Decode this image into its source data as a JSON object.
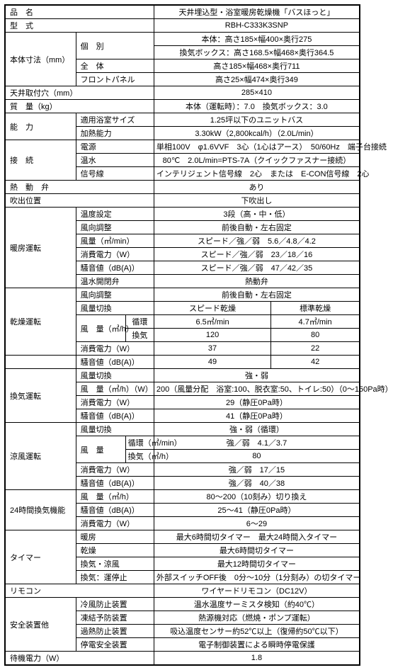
{
  "cols": [
    "70",
    "30",
    "70",
    "40",
    "40",
    "125",
    "125"
  ],
  "rows": [
    [
      {
        "cs": 4,
        "t": "品　名",
        "cl": "l outer-top outer-left"
      },
      {
        "cs": 3,
        "t": "天井埋込型・浴室暖房乾燥機「バスほっと」",
        "cl": "c outer-top outer-right"
      }
    ],
    [
      {
        "cs": 4,
        "t": "型　式",
        "cl": "l outer-left"
      },
      {
        "cs": 3,
        "t": "RBH-C333K3SNP",
        "cl": "c outer-right"
      }
    ],
    [
      {
        "cs": 2,
        "rs": 4,
        "t": "本体寸法（mm）",
        "cl": "l outer-left"
      },
      {
        "cs": 2,
        "rs": 2,
        "t": "個　別",
        "cl": "l"
      },
      {
        "cs": 3,
        "t": "本体：高さ185×幅400×奥行275",
        "cl": "c outer-right"
      }
    ],
    [
      {
        "cs": 3,
        "t": "換気ボックス：高さ168.5×幅468×奥行364.5",
        "cl": "c outer-right"
      }
    ],
    [
      {
        "cs": 2,
        "t": "全　体",
        "cl": "l"
      },
      {
        "cs": 3,
        "t": "高さ185×幅468×奥行711",
        "cl": "c outer-right"
      }
    ],
    [
      {
        "cs": 2,
        "t": "フロントパネル",
        "cl": "l"
      },
      {
        "cs": 3,
        "t": "高さ25×幅474×奥行349",
        "cl": "c outer-right"
      }
    ],
    [
      {
        "cs": 4,
        "t": "天井取付穴（mm）",
        "cl": "l outer-left"
      },
      {
        "cs": 3,
        "t": "285×410",
        "cl": "c outer-right"
      }
    ],
    [
      {
        "cs": 4,
        "t": "質　量（kg）",
        "cl": "l outer-left"
      },
      {
        "cs": 3,
        "t": "本体（運転時）：7.0　換気ボックス：3.0",
        "cl": "c outer-right"
      }
    ],
    [
      {
        "cs": 2,
        "rs": 2,
        "t": "能　力",
        "cl": "l outer-left"
      },
      {
        "cs": 2,
        "t": "適用浴室サイズ",
        "cl": "l"
      },
      {
        "cs": 3,
        "t": "1.25坪以下のユニットバス",
        "cl": "c outer-right"
      }
    ],
    [
      {
        "cs": 2,
        "t": "加熱能力",
        "cl": "l"
      },
      {
        "cs": 3,
        "t": "3.30kW（2,800kcal/h）（2.0L/min）",
        "cl": "c outer-right"
      }
    ],
    [
      {
        "cs": 2,
        "rs": 3,
        "t": "接　続",
        "cl": "l outer-left"
      },
      {
        "cs": 2,
        "t": "電源",
        "cl": "l"
      },
      {
        "cs": 3,
        "t": "単相100V　φ1.6VVF　3心（1心はアース）　50/60Hz　端子台接続",
        "cl": "c outer-right"
      }
    ],
    [
      {
        "cs": 2,
        "t": "温水",
        "cl": "l"
      },
      {
        "cs": 3,
        "t": "80℃　2.0L/min=PTS-7A（クイックファスナー接続）",
        "cl": "c outer-right"
      }
    ],
    [
      {
        "cs": 2,
        "t": "信号線",
        "cl": "l"
      },
      {
        "cs": 3,
        "t": "インテリジェント信号線　2心　または　E-CON信号線　2心",
        "cl": "c outer-right"
      }
    ],
    [
      {
        "cs": 4,
        "t": "熱　動　弁",
        "cl": "l outer-left"
      },
      {
        "cs": 3,
        "t": "あり",
        "cl": "c outer-right"
      }
    ],
    [
      {
        "cs": 4,
        "t": "吹出位置",
        "cl": "l outer-left"
      },
      {
        "cs": 3,
        "t": "下吹出し",
        "cl": "c outer-right"
      }
    ],
    [
      {
        "cs": 2,
        "rs": 6,
        "t": "暖房運転",
        "cl": "l outer-left"
      },
      {
        "cs": 2,
        "t": "温度設定",
        "cl": "l"
      },
      {
        "cs": 3,
        "t": "3段（高・中・低）",
        "cl": "c outer-right"
      }
    ],
    [
      {
        "cs": 2,
        "t": "風向調整",
        "cl": "l"
      },
      {
        "cs": 3,
        "t": "前後自動・左右固定",
        "cl": "c outer-right"
      }
    ],
    [
      {
        "cs": 2,
        "t": "風量（㎥/min）",
        "cl": "l"
      },
      {
        "cs": 3,
        "t": "スピード／強／弱　5.6／4.8／4.2",
        "cl": "c outer-right"
      }
    ],
    [
      {
        "cs": 2,
        "t": "消費電力（W）",
        "cl": "l"
      },
      {
        "cs": 3,
        "t": "スピード／強／弱　23／18／16",
        "cl": "c outer-right"
      }
    ],
    [
      {
        "cs": 2,
        "t": "騒音値（dB(A)）",
        "cl": "l"
      },
      {
        "cs": 3,
        "t": "スピード／強／弱　47／42／35",
        "cl": "c outer-right"
      }
    ],
    [
      {
        "cs": 2,
        "t": "温水開閉弁",
        "cl": "l"
      },
      {
        "cs": 3,
        "t": "熱動弁",
        "cl": "c outer-right"
      }
    ],
    [
      {
        "cs": 2,
        "rs": 5,
        "t": "乾燥運転",
        "cl": "l outer-left"
      },
      {
        "cs": 2,
        "t": "風向調整",
        "cl": "l"
      },
      {
        "cs": 3,
        "t": "前後自動・左右固定",
        "cl": "c outer-right"
      }
    ],
    [
      {
        "cs": 2,
        "t": "風量切換",
        "cl": "l"
      },
      {
        "cs": 2,
        "t": "スピード乾燥",
        "cl": "c"
      },
      {
        "t": "標準乾燥",
        "cl": "c outer-right"
      }
    ],
    [
      {
        "rs": 2,
        "t": "風　量（㎥/h）",
        "cl": "l"
      },
      {
        "t": "循環",
        "cl": "c"
      },
      {
        "cs": 2,
        "t": "6.5㎥/min",
        "cl": "c"
      },
      {
        "t": "4.7㎥/min",
        "cl": "c outer-right"
      }
    ],
    [
      {
        "t": "換気",
        "cl": "c"
      },
      {
        "cs": 2,
        "t": "120",
        "cl": "c"
      },
      {
        "t": "80",
        "cl": "c outer-right"
      }
    ],
    [
      {
        "cs": 2,
        "t": "消費電力（W）",
        "cl": "l"
      },
      {
        "cs": 2,
        "t": "37",
        "cl": "c"
      },
      {
        "t": "22",
        "cl": "c outer-right"
      }
    ],
    [
      {
        "cs": 2,
        "t": "",
        "cl": "outer-left"
      },
      {
        "cs": 2,
        "t": "騒音値（dB(A)）",
        "cl": "l"
      },
      {
        "cs": 2,
        "t": "49",
        "cl": "c"
      },
      {
        "t": "42",
        "cl": "c outer-right"
      }
    ],
    [
      {
        "cs": 2,
        "rs": 4,
        "t": "換気運転",
        "cl": "l outer-left"
      },
      {
        "cs": 2,
        "t": "風量切換",
        "cl": "l"
      },
      {
        "cs": 3,
        "t": "強・弱",
        "cl": "c outer-right"
      }
    ],
    [
      {
        "cs": 2,
        "t": "風　量（㎥/h）（W）",
        "cl": "l"
      },
      {
        "cs": 3,
        "t": "200（風量分配　浴室:100、脱衣室:50、トイレ:50）（0～150Pa時）",
        "cl": "c outer-right"
      }
    ],
    [
      {
        "cs": 2,
        "t": "消費電力（W）",
        "cl": "l"
      },
      {
        "cs": 3,
        "t": "29（静圧0Pa時）",
        "cl": "c outer-right"
      }
    ],
    [
      {
        "cs": 2,
        "t": "騒音値（dB(A)）",
        "cl": "l"
      },
      {
        "cs": 3,
        "t": "41（静圧0Pa時）",
        "cl": "c outer-right"
      }
    ],
    [
      {
        "cs": 2,
        "rs": 5,
        "t": "涼風運転",
        "cl": "l outer-left"
      },
      {
        "cs": 2,
        "t": "風量切換",
        "cl": "l"
      },
      {
        "cs": 3,
        "t": "強・弱（循環）",
        "cl": "c outer-right"
      }
    ],
    [
      {
        "rs": 2,
        "t": "風　量",
        "cl": "l"
      },
      {
        "t": "循環（㎥/min）",
        "cl": "c"
      },
      {
        "cs": 3,
        "t": "強／弱　4.1／3.7",
        "cl": "c outer-right"
      }
    ],
    [
      {
        "t": "換気（㎥/h）",
        "cl": "c"
      },
      {
        "cs": 3,
        "t": "80",
        "cl": "c outer-right"
      }
    ],
    [
      {
        "cs": 2,
        "t": "消費電力（W）",
        "cl": "l"
      },
      {
        "cs": 3,
        "t": "強／弱　17／15",
        "cl": "c outer-right"
      }
    ],
    [
      {
        "cs": 2,
        "t": "騒音値（dB(A)）",
        "cl": "l"
      },
      {
        "cs": 3,
        "t": "強／弱　40／38",
        "cl": "c outer-right"
      }
    ],
    [
      {
        "cs": 2,
        "rs": 3,
        "t": "24時間換気機能",
        "cl": "l outer-left"
      },
      {
        "cs": 2,
        "t": "風　量（㎥/h）",
        "cl": "l"
      },
      {
        "cs": 3,
        "t": "80～200（10刻み）切り換え",
        "cl": "c outer-right"
      }
    ],
    [
      {
        "cs": 2,
        "t": "騒音値（dB(A)）",
        "cl": "l"
      },
      {
        "cs": 3,
        "t": "25～41（静圧0Pa時）",
        "cl": "c outer-right"
      }
    ],
    [
      {
        "cs": 2,
        "t": "消費電力（W）",
        "cl": "l"
      },
      {
        "cs": 3,
        "t": "6～29",
        "cl": "c outer-right"
      }
    ],
    [
      {
        "cs": 2,
        "rs": 4,
        "t": "タイマー",
        "cl": "l outer-left"
      },
      {
        "cs": 2,
        "t": "暖房",
        "cl": "l"
      },
      {
        "cs": 3,
        "t": "最大6時間切タイマー　最大24時間入タイマー",
        "cl": "c outer-right"
      }
    ],
    [
      {
        "cs": 2,
        "t": "乾燥",
        "cl": "l"
      },
      {
        "cs": 3,
        "t": "最大6時間切タイマー",
        "cl": "c outer-right"
      }
    ],
    [
      {
        "cs": 2,
        "t": "換気・涼風",
        "cl": "l"
      },
      {
        "cs": 3,
        "t": "最大12時間切タイマー",
        "cl": "c outer-right"
      }
    ],
    [
      {
        "cs": 2,
        "t": "換気：運停止",
        "cl": "l"
      },
      {
        "cs": 3,
        "t": "外部スイッチOFF後　0分～10分（1分刻み）の切タイマー",
        "cl": "c outer-right"
      }
    ],
    [
      {
        "cs": 4,
        "t": "リモコン",
        "cl": "l outer-left"
      },
      {
        "cs": 3,
        "t": "ワイヤードリモコン（DC12V）",
        "cl": "c outer-right"
      }
    ],
    [
      {
        "cs": 2,
        "rs": 4,
        "t": "安全装置他",
        "cl": "l outer-left"
      },
      {
        "cs": 2,
        "t": "冷風防止装置",
        "cl": "l"
      },
      {
        "cs": 3,
        "t": "温水温度サーミスタ検知（約40℃）",
        "cl": "c outer-right"
      }
    ],
    [
      {
        "cs": 2,
        "t": "凍結予防装置",
        "cl": "l"
      },
      {
        "cs": 3,
        "t": "熱源機対応（燃焼・ポンプ運転）",
        "cl": "c outer-right"
      }
    ],
    [
      {
        "cs": 2,
        "t": "過熱防止装置",
        "cl": "l"
      },
      {
        "cs": 3,
        "t": "吸込温度センサー約52℃以上（復帰約50℃以下）",
        "cl": "c outer-right"
      }
    ],
    [
      {
        "cs": 2,
        "t": "停電安全装置",
        "cl": "l"
      },
      {
        "cs": 3,
        "t": "電子制御装置による瞬時停電保護",
        "cl": "c outer-right"
      }
    ],
    [
      {
        "cs": 4,
        "t": "待機電力（W）",
        "cl": "l outer-left outer-bottom"
      },
      {
        "cs": 3,
        "t": "1.8",
        "cl": "c outer-right outer-bottom"
      }
    ]
  ]
}
